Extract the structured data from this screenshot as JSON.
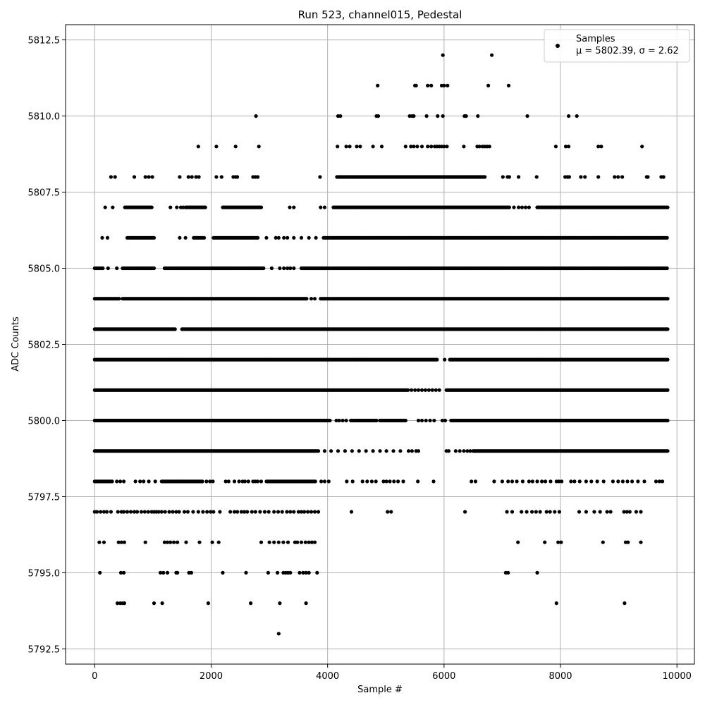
{
  "chart_data": {
    "type": "scatter",
    "title": "Run 523, channel015, Pedestal",
    "xlabel": "Sample #",
    "ylabel": "ADC Counts",
    "xlim": [
      -500,
      10300
    ],
    "ylim": [
      5792.0,
      5813.0
    ],
    "xticks": [
      0,
      2000,
      4000,
      6000,
      8000,
      10000
    ],
    "xtick_labels": [
      "0",
      "2000",
      "4000",
      "6000",
      "8000",
      "10000"
    ],
    "yticks": [
      5792.5,
      5795.0,
      5797.5,
      5800.0,
      5802.5,
      5805.0,
      5807.5,
      5810.0,
      5812.5
    ],
    "ytick_labels": [
      "5792.5",
      "5795.0",
      "5797.5",
      "5800.0",
      "5802.5",
      "5805.0",
      "5807.5",
      "5810.0",
      "5812.5"
    ],
    "grid": true,
    "legend": {
      "placement": "top-right",
      "entries": [
        "Samples",
        "μ = 5802.39, σ = 2.62"
      ]
    },
    "marker_color": "#000000",
    "series": [
      {
        "name": "Samples",
        "levels": [
          {
            "y": 5812,
            "x": [
              5980,
              6820
            ]
          },
          {
            "y": 5811,
            "x": [
              4860,
              5500,
              5520,
              5720,
              5780,
              5960,
              6000,
              6060,
              6760,
              7110
            ]
          },
          {
            "y": 5810,
            "x": [
              2770,
              4180,
              4220,
              4840,
              4870,
              5410,
              5450,
              5480,
              5700,
              5890,
              5980,
              6350,
              6380,
              6580,
              7430,
              8140,
              8280
            ]
          },
          {
            "y": 5809,
            "x": [
              1780,
              2090,
              2420,
              2820,
              4170,
              4320,
              4380,
              4500,
              4560,
              4780,
              4930,
              5340,
              5430,
              5480,
              5540,
              5620,
              5720,
              5780,
              5840,
              5880,
              5920,
              5960,
              6000,
              6050,
              6340,
              6570,
              6610,
              6660,
              6700,
              6740,
              6780,
              7920,
              8090,
              8140,
              8650,
              8700,
              9400
            ]
          },
          {
            "y": 5808,
            "segments": [
              [
                4160,
                6700
              ]
            ],
            "x": [
              280,
              350,
              680,
              870,
              930,
              990,
              1460,
              1610,
              1670,
              1740,
              1790,
              2090,
              2180,
              2380,
              2420,
              2450,
              2720,
              2760,
              2800,
              3870,
              7010,
              7090,
              7120,
              7280,
              7590,
              8080,
              8120,
              8150,
              8350,
              8420,
              8650,
              8930,
              8990,
              9060,
              9480,
              9500,
              9730,
              9770
            ]
          },
          {
            "y": 5807,
            "segments": [
              [
                520,
                980
              ],
              [
                1560,
                1900
              ],
              [
                2200,
                2870
              ],
              [
                4100,
                7120
              ],
              [
                7600,
                9840
              ]
            ],
            "x": [
              180,
              310,
              1300,
              1410,
              1480,
              1520,
              3350,
              3420,
              3880,
              3950,
              7200,
              7280,
              7340,
              7400,
              7460
            ]
          },
          {
            "y": 5806,
            "segments": [
              [
                560,
                1020
              ],
              [
                1700,
                1880
              ],
              [
                2040,
                2800
              ],
              [
                3930,
                9840
              ]
            ],
            "x": [
              130,
              220,
              1460,
              1560,
              2950,
              3110,
              3160,
              3250,
              3310,
              3420,
              3550,
              3680,
              3800
            ]
          },
          {
            "y": 5805,
            "segments": [
              [
                0,
                140
              ],
              [
                480,
                1020
              ],
              [
                1200,
                2900
              ],
              [
                3550,
                9840
              ]
            ],
            "x": [
              230,
              380,
              3040,
              3180,
              3250,
              3310,
              3360,
              3420
            ]
          },
          {
            "y": 5804,
            "segments": [
              [
                0,
                420
              ],
              [
                480,
                3650
              ],
              [
                3880,
                9840
              ]
            ],
            "x": [
              3720,
              3780
            ]
          },
          {
            "y": 5803,
            "segments": [
              [
                0,
                1380
              ],
              [
                1500,
                9840
              ]
            ]
          },
          {
            "y": 5802,
            "segments": [
              [
                0,
                5880
              ],
              [
                6100,
                9840
              ]
            ],
            "x": [
              6010
            ]
          },
          {
            "y": 5801,
            "segments": [
              [
                0,
                5390
              ],
              [
                6040,
                9840
              ]
            ],
            "x": [
              5440,
              5500,
              5560,
              5620,
              5680,
              5740,
              5800,
              5860,
              5920
            ]
          },
          {
            "y": 5800,
            "segments": [
              [
                0,
                4050
              ],
              [
                4400,
                4850
              ],
              [
                4900,
                5350
              ],
              [
                6120,
                9840
              ]
            ],
            "x": [
              4150,
              4200,
              4260,
              4320,
              5560,
              5620,
              5690,
              5760,
              5830,
              5970,
              6020
            ]
          },
          {
            "y": 5799,
            "segments": [
              [
                0,
                3850
              ],
              [
                6500,
                9840
              ]
            ],
            "x": [
              3950,
              4060,
              4180,
              4300,
              4420,
              4540,
              4660,
              4780,
              4900,
              5010,
              5130,
              5250,
              5390,
              5450,
              5520,
              5560,
              6040,
              6080,
              6200,
              6270,
              6340,
              6400,
              6450
            ]
          },
          {
            "y": 5798,
            "segments": [
              [
                0,
                300
              ],
              [
                1150,
                1850
              ],
              [
                2950,
                3800
              ]
            ],
            "x": [
              380,
              440,
              500,
              700,
              780,
              840,
              930,
              1040,
              1920,
              1980,
              2030,
              2250,
              2300,
              2400,
              2480,
              2540,
              2580,
              2640,
              2720,
              2760,
              2800,
              2860,
              3890,
              3950,
              4020,
              4330,
              4430,
              4600,
              4680,
              4760,
              4830,
              4960,
              5010,
              5070,
              5140,
              5210,
              5300,
              5550,
              5820,
              6470,
              6540,
              6860,
              7000,
              7100,
              7170,
              7250,
              7350,
              7460,
              7520,
              7600,
              7680,
              7740,
              7830,
              7930,
              7970,
              8020,
              8180,
              8240,
              8330,
              8440,
              8530,
              8630,
              8740,
              8900,
              8990,
              9070,
              9150,
              9230,
              9330,
              9440,
              9640,
              9700,
              9750
            ]
          },
          {
            "y": 5797,
            "x": [
              0,
              40,
              100,
              160,
              210,
              280,
              400,
              460,
              500,
              560,
              620,
              680,
              730,
              800,
              860,
              920,
              980,
              1020,
              1060,
              1100,
              1150,
              1210,
              1280,
              1340,
              1400,
              1450,
              1540,
              1600,
              1690,
              1780,
              1860,
              1930,
              1990,
              2040,
              2150,
              2330,
              2400,
              2450,
              2520,
              2570,
              2620,
              2700,
              2760,
              2840,
              2920,
              2990,
              3080,
              3150,
              3220,
              3300,
              3360,
              3420,
              3500,
              3550,
              3600,
              3660,
              3720,
              3780,
              3840,
              4410,
              5030,
              5090,
              6360,
              7080,
              7170,
              7330,
              7420,
              7510,
              7580,
              7650,
              7760,
              7820,
              7900,
              7980,
              8320,
              8440,
              8580,
              8680,
              8800,
              8860,
              9090,
              9140,
              9190,
              9300,
              9380
            ]
          },
          {
            "y": 5796,
            "x": [
              80,
              160,
              410,
              460,
              510,
              870,
              1200,
              1250,
              1300,
              1360,
              1420,
              1570,
              1800,
              2020,
              2130,
              2860,
              3000,
              3080,
              3160,
              3240,
              3320,
              3440,
              3480,
              3550,
              3620,
              3680,
              3730,
              3780,
              7270,
              7730,
              7960,
              8010,
              8730,
              9120,
              9160,
              9380
            ]
          },
          {
            "y": 5795,
            "x": [
              90,
              450,
              500,
              1130,
              1180,
              1250,
              1400,
              1420,
              1620,
              1660,
              2200,
              2600,
              2980,
              3140,
              3240,
              3280,
              3320,
              3360,
              3520,
              3580,
              3630,
              3680,
              3820,
              7060,
              7100,
              7600
            ]
          },
          {
            "y": 5794,
            "x": [
              390,
              440,
              480,
              510,
              1020,
              1160,
              1950,
              2680,
              3180,
              3630,
              7930,
              9100
            ]
          },
          {
            "y": 5793,
            "x": [
              3160
            ]
          }
        ]
      }
    ]
  }
}
